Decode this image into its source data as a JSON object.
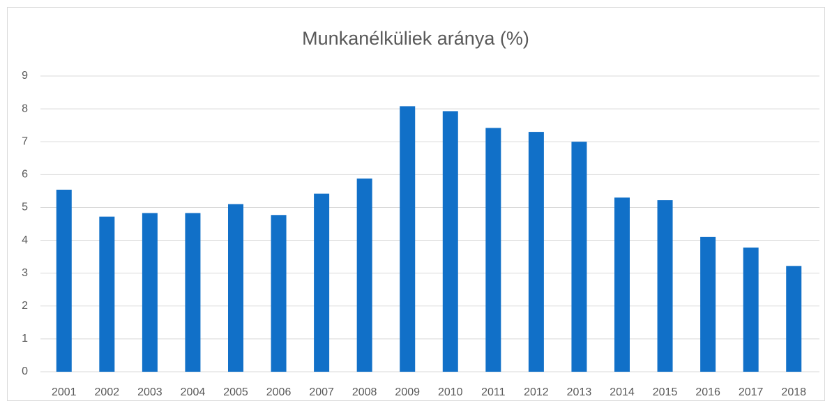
{
  "chart_data": {
    "type": "bar",
    "title": "Munkanélküliek aránya (%)",
    "categories": [
      "2001",
      "2002",
      "2003",
      "2004",
      "2005",
      "2006",
      "2007",
      "2008",
      "2009",
      "2010",
      "2011",
      "2012",
      "2013",
      "2014",
      "2015",
      "2016",
      "2017",
      "2018"
    ],
    "values": [
      5.54,
      4.72,
      4.83,
      4.83,
      5.1,
      4.77,
      5.42,
      5.88,
      8.08,
      7.93,
      7.42,
      7.3,
      7.0,
      5.3,
      5.22,
      4.1,
      3.78,
      3.22
    ],
    "color": "#1170c8",
    "ylim": [
      0,
      9
    ],
    "yticks": [
      0,
      1,
      2,
      3,
      4,
      5,
      6,
      7,
      8,
      9
    ],
    "grid": true
  }
}
